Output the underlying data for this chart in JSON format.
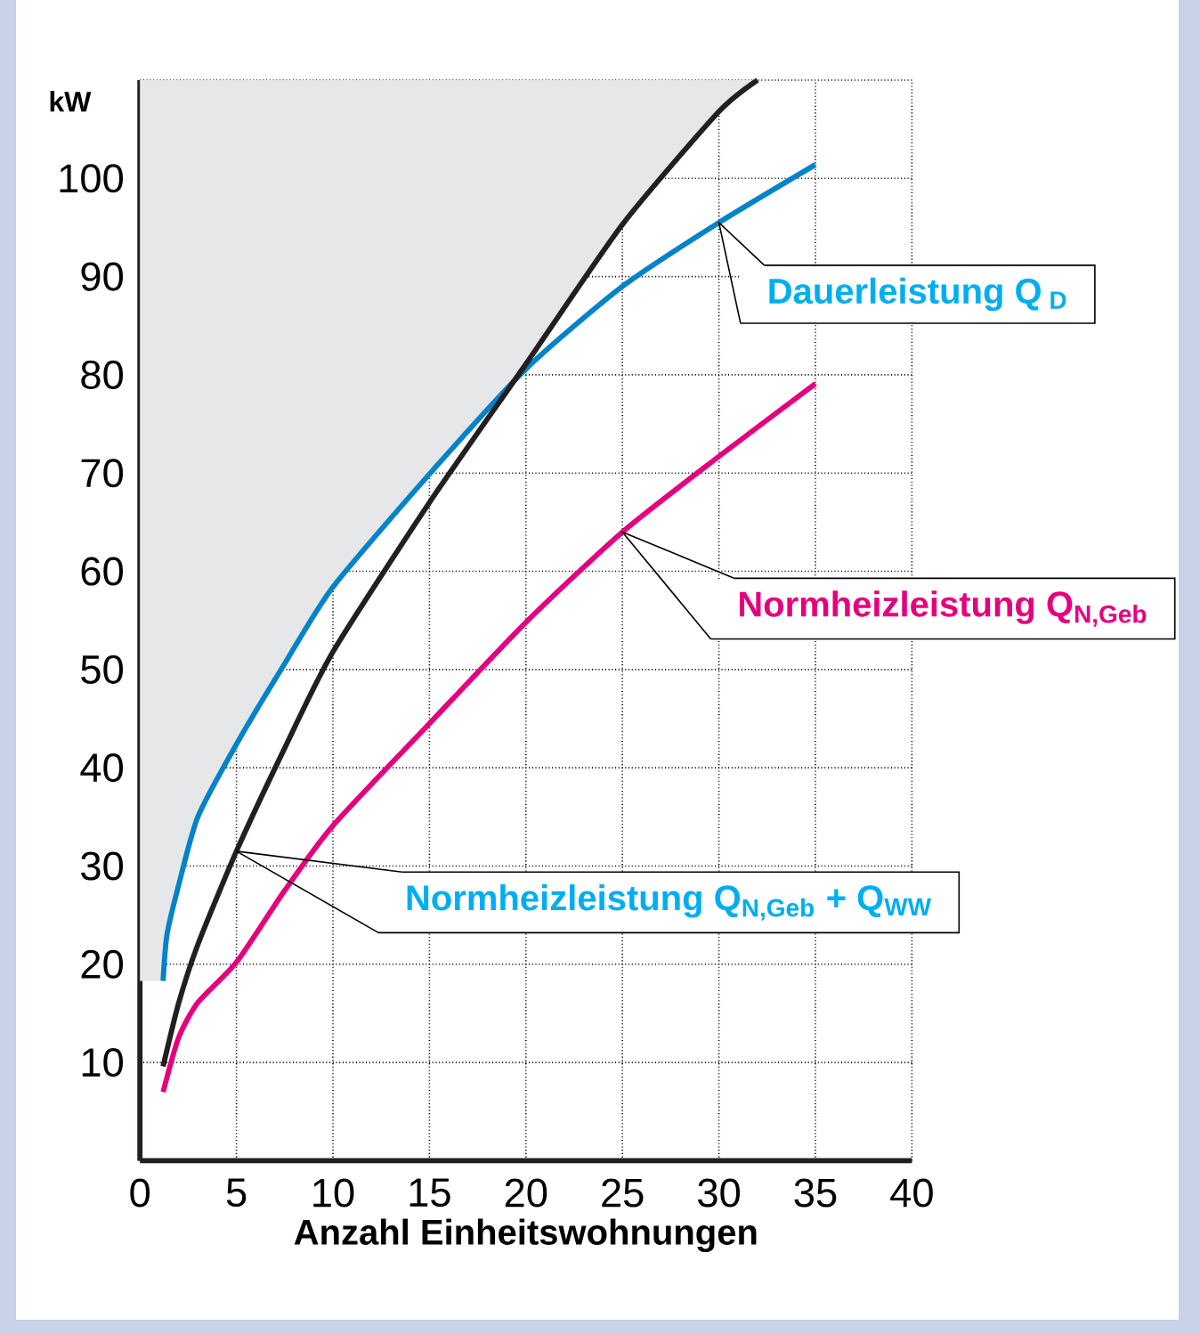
{
  "chart_data": {
    "type": "line",
    "xlabel": "Anzahl Einheitswohnungen",
    "ylabel": "kW",
    "series": [
      {
        "type": "area",
        "color": "#e6e7e9",
        "x": [
          0,
          0,
          1.2,
          1.4,
          2,
          3,
          5,
          7.5,
          10,
          15,
          17.5,
          20,
          25,
          30,
          32
        ],
        "values": [
          110,
          18.3,
          18.3,
          23,
          28,
          35,
          42.4,
          50.6,
          58.4,
          69.9,
          75,
          81.1,
          95.3,
          106.8,
          110
        ]
      },
      {
        "color": "#0083c9",
        "x": [
          1.2,
          1.4,
          2,
          3,
          5,
          7.5,
          10,
          15,
          20,
          25,
          30,
          35
        ],
        "values": [
          18.3,
          23,
          28,
          35,
          42.4,
          50.6,
          58.4,
          69.9,
          80.6,
          89,
          95.5,
          101.4
        ]
      },
      {
        "color": "#231f20",
        "x": [
          1.2,
          2,
          3,
          5,
          7.5,
          10,
          15,
          20,
          25,
          30,
          32
        ],
        "values": [
          9.6,
          16,
          22,
          31.5,
          42,
          51.8,
          67,
          81.1,
          95.3,
          106.8,
          110
        ]
      },
      {
        "color": "#e5007e",
        "x": [
          1.2,
          2,
          3,
          5,
          7.5,
          10,
          15,
          20,
          25,
          30,
          35
        ],
        "values": [
          7,
          12.5,
          16.1,
          20.2,
          27.5,
          34.1,
          44.5,
          54.8,
          64,
          71.7,
          79.1
        ]
      }
    ],
    "annotations": [
      "Dauerleistung Q$_{ D}$",
      "Normheizleistung Q$_{N,Geb}$",
      "Normheizleistung Q$_{N,Geb}$  +  Q$_{WW}$"
    ],
    "xlim": [
      0,
      40
    ],
    "ylim": [
      0,
      110
    ],
    "xticks": [
      0,
      5,
      10,
      15,
      20,
      25,
      30,
      35,
      40
    ],
    "yticks": [
      10,
      20,
      30,
      40,
      50,
      60,
      70,
      80,
      90,
      100,
      {
        "value": 110,
        "label": null
      }
    ],
    "grid": true,
    "line_style": "solid"
  }
}
